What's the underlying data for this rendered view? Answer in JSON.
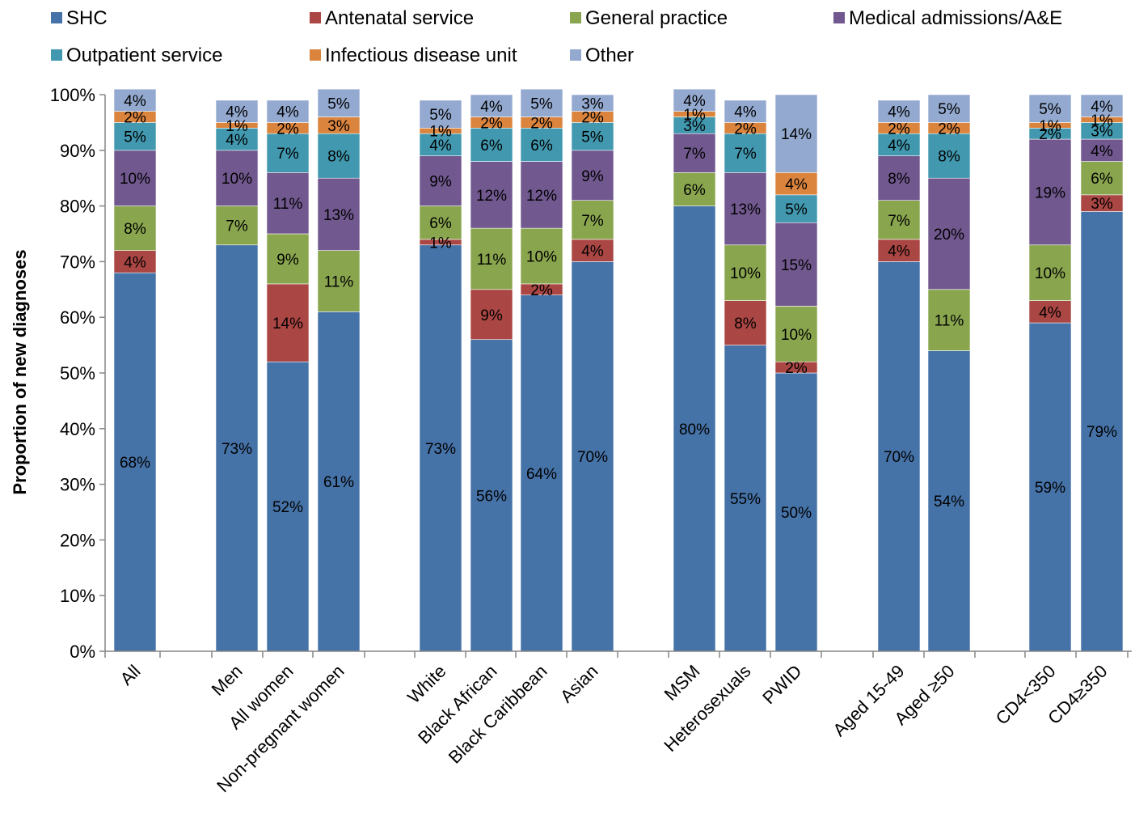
{
  "chart_data": {
    "type": "bar",
    "stacked": true,
    "percent": true,
    "ylabel": "Proportion of new diagnoses",
    "xlabel": "",
    "ylim": [
      0,
      100
    ],
    "yticks": [
      "0%",
      "10%",
      "20%",
      "30%",
      "40%",
      "50%",
      "60%",
      "70%",
      "80%",
      "90%",
      "100%"
    ],
    "legend_position": "top",
    "categories": [
      "All",
      "Men",
      "All women",
      "Non-pregnant women",
      "White",
      "Black African",
      "Black Caribbean",
      "Asian",
      "MSM",
      "Heterosexuals",
      "PWID",
      "Aged 15-49",
      "Aged ≥50",
      "CD4<350",
      "CD4≥350"
    ],
    "series": [
      {
        "name": "SHC",
        "color": "#4572A7",
        "values": [
          68,
          73,
          52,
          61,
          73,
          56,
          64,
          70,
          80,
          55,
          50,
          70,
          54,
          59,
          79
        ],
        "labels": [
          "68%",
          "73%",
          "52%",
          "61%",
          "73%",
          "56%",
          "64%",
          "70%",
          "80%",
          "55%",
          "50%",
          "70%",
          "54%",
          "59%",
          "79%"
        ]
      },
      {
        "name": "Antenatal service",
        "color": "#AA4643",
        "values": [
          4,
          0,
          14,
          0,
          1,
          9,
          2,
          4,
          0,
          8,
          2,
          4,
          0,
          4,
          3
        ],
        "labels": [
          "4%",
          "",
          "14%",
          "",
          "1%",
          "9%",
          "2%",
          "4%",
          "",
          "8%",
          "2%",
          "4%",
          "",
          "4%",
          "3%"
        ]
      },
      {
        "name": "General practice",
        "color": "#89A54E",
        "values": [
          8,
          7,
          9,
          11,
          6,
          11,
          10,
          7,
          6,
          10,
          10,
          7,
          11,
          10,
          6
        ],
        "labels": [
          "8%",
          "7%",
          "9%",
          "11%",
          "6%",
          "11%",
          "10%",
          "7%",
          "6%",
          "10%",
          "10%",
          "7%",
          "11%",
          "10%",
          "6%"
        ]
      },
      {
        "name": "Medical admissions/A&E",
        "color": "#71588F",
        "values": [
          10,
          10,
          11,
          13,
          9,
          12,
          12,
          9,
          7,
          13,
          15,
          8,
          20,
          19,
          4
        ],
        "labels": [
          "10%",
          "10%",
          "11%",
          "13%",
          "9%",
          "12%",
          "12%",
          "9%",
          "7%",
          "13%",
          "15%",
          "8%",
          "20%",
          "19%",
          "4%"
        ]
      },
      {
        "name": "Outpatient service",
        "color": "#4198AF",
        "values": [
          5,
          4,
          7,
          8,
          4,
          6,
          6,
          5,
          3,
          7,
          5,
          4,
          8,
          2,
          3
        ],
        "labels": [
          "5%",
          "4%",
          "7%",
          "8%",
          "4%",
          "6%",
          "6%",
          "5%",
          "3%",
          "7%",
          "5%",
          "4%",
          "8%",
          "2%",
          "3%"
        ]
      },
      {
        "name": "Infectious disease unit",
        "color": "#DB843D",
        "values": [
          2,
          1,
          2,
          3,
          1,
          2,
          2,
          2,
          1,
          2,
          4,
          2,
          2,
          1,
          1
        ],
        "labels": [
          "2%",
          "1%",
          "2%",
          "3%",
          "1%",
          "2%",
          "2%",
          "2%",
          "1%",
          "2%",
          "4%",
          "2%",
          "2%",
          "1%",
          "1%"
        ]
      },
      {
        "name": "Other",
        "color": "#93A9CF",
        "values": [
          4,
          4,
          4,
          5,
          5,
          4,
          5,
          3,
          4,
          4,
          14,
          4,
          5,
          5,
          4
        ],
        "labels": [
          "4%",
          "4%",
          "4%",
          "5%",
          "5%",
          "4%",
          "5%",
          "3%",
          "4%",
          "4%",
          "14%",
          "4%",
          "5%",
          "5%",
          "4%"
        ]
      }
    ]
  }
}
